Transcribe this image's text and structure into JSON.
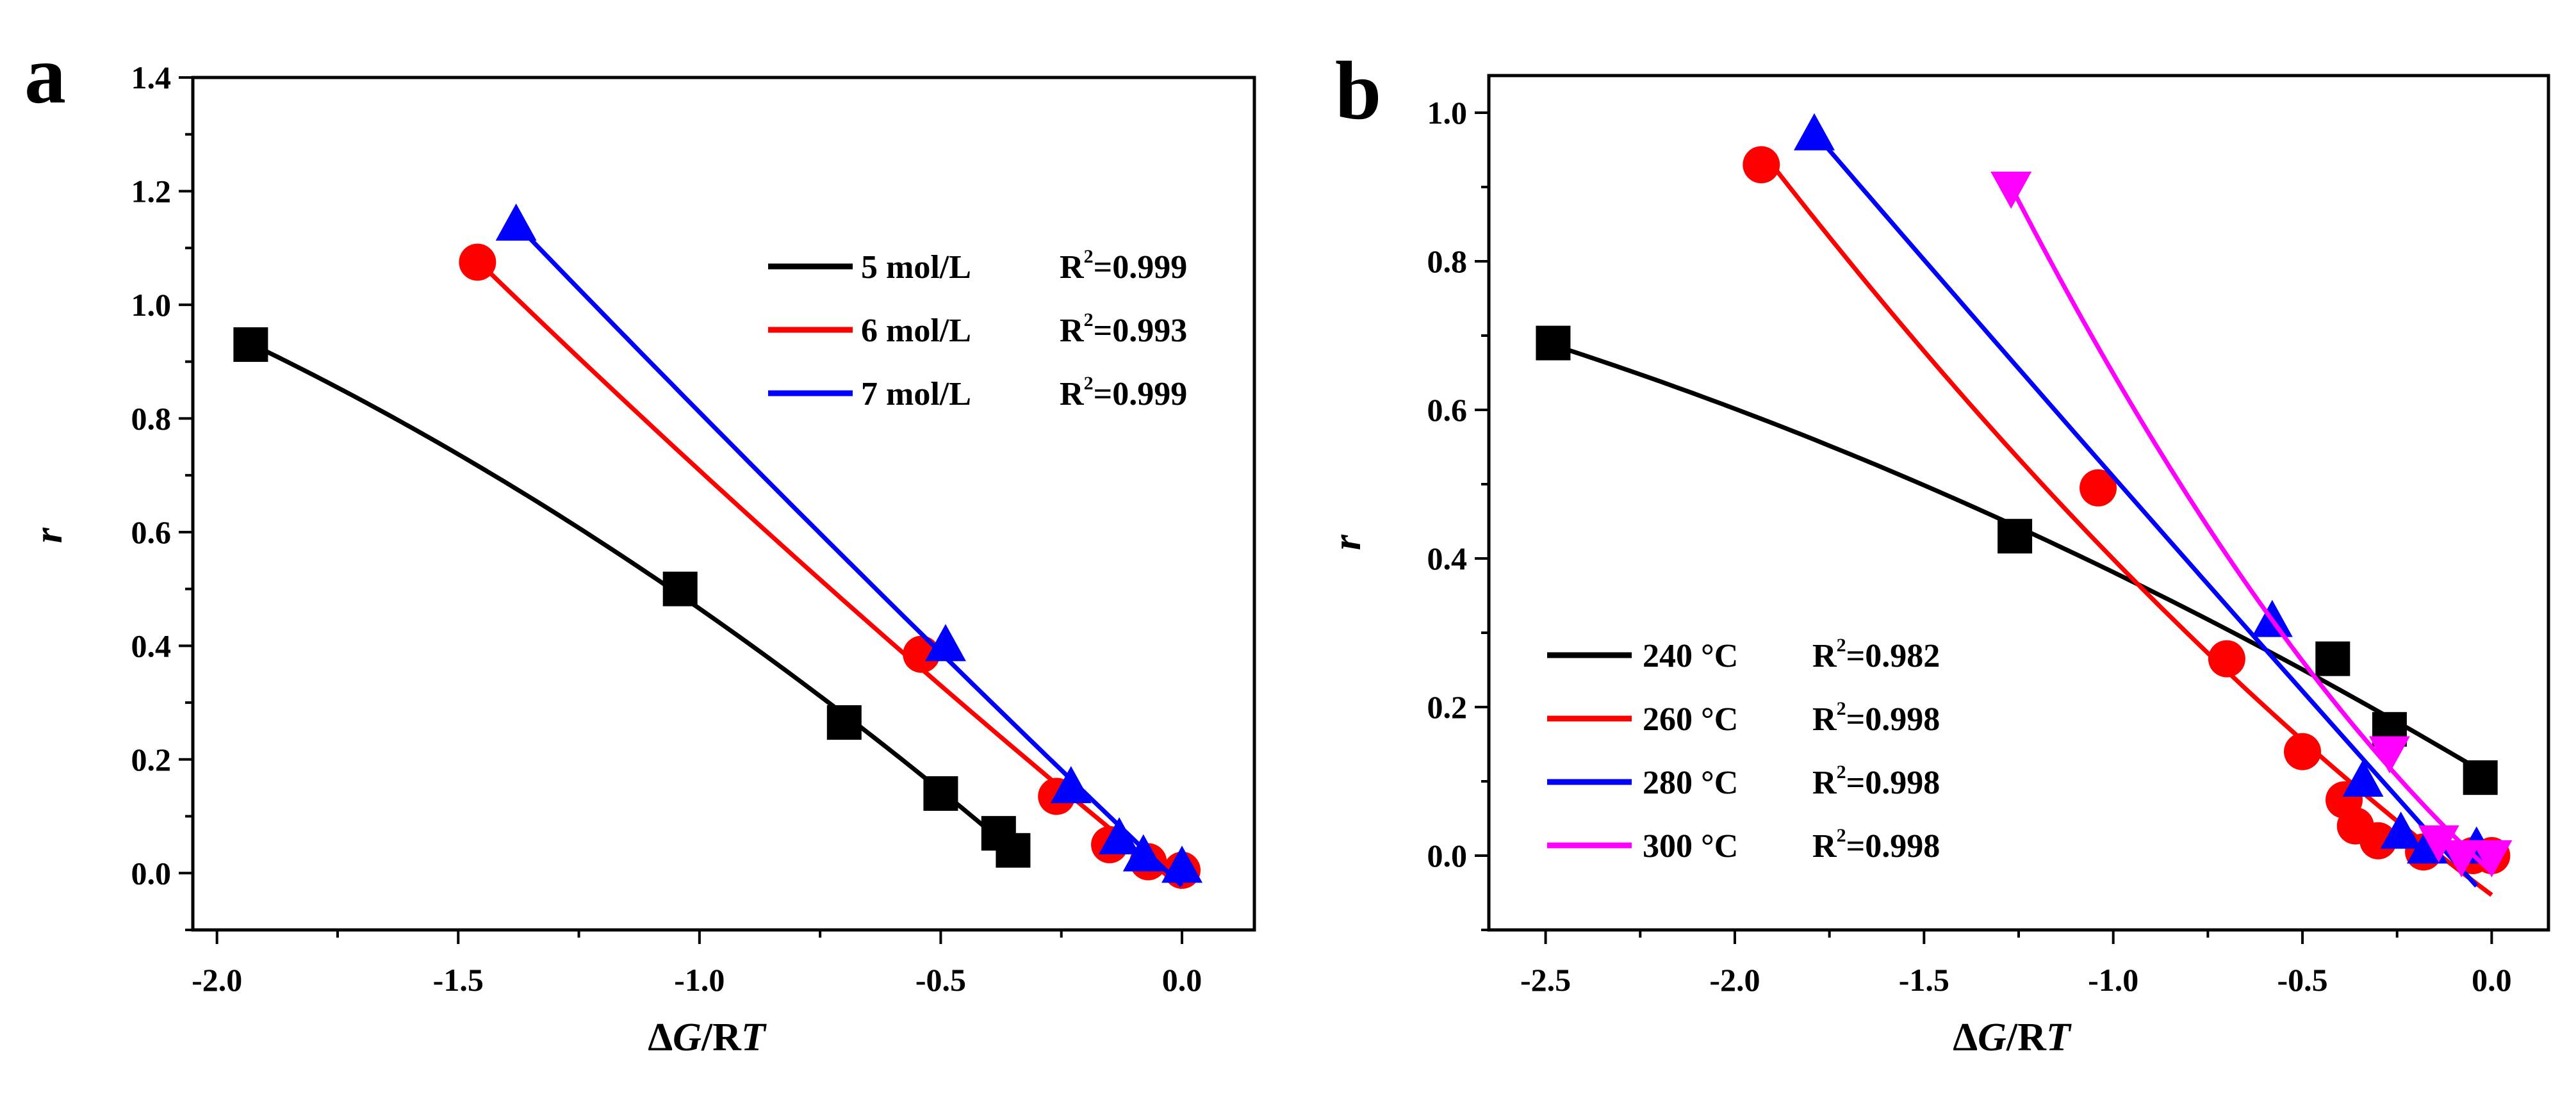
{
  "chart_data": [
    {
      "type": "scatter",
      "panel_label": "a",
      "xlabel_parts": [
        "Δ",
        "G",
        "/R",
        "T"
      ],
      "ylabel": "r",
      "xlim": [
        -2.05,
        0.15
      ],
      "ylim": [
        -0.1,
        1.4
      ],
      "xticks": [
        -2.0,
        -1.5,
        -1.0,
        -0.5,
        0.0
      ],
      "xtick_labels": [
        "-2.0",
        "-1.5",
        "-1.0",
        "-0.5",
        "0.0"
      ],
      "yticks": [
        0.0,
        0.2,
        0.4,
        0.6,
        0.8,
        1.0,
        1.2,
        1.4
      ],
      "ytick_labels": [
        "0.0",
        "0.2",
        "0.4",
        "0.6",
        "0.8",
        "1.0",
        "1.2",
        "1.4"
      ],
      "legend_placement": "top-right",
      "series": [
        {
          "name": "5 mol/L",
          "r2": "R²=0.999",
          "r2_base": "R",
          "r2_sup": "2",
          "r2_val": "=0.999",
          "color": "#000000",
          "marker": "square",
          "x": [
            -1.93,
            -1.04,
            -0.7,
            -0.5,
            -0.38,
            -0.35
          ],
          "y": [
            0.93,
            0.5,
            0.265,
            0.14,
            0.07,
            0.04
          ]
        },
        {
          "name": "6 mol/L",
          "r2": "R²=0.993",
          "r2_base": "R",
          "r2_sup": "2",
          "r2_val": "=0.993",
          "color": "#ff0000",
          "marker": "circle",
          "x": [
            -1.46,
            -0.54,
            -0.26,
            -0.15,
            -0.07,
            0.0
          ],
          "y": [
            1.075,
            0.385,
            0.135,
            0.05,
            0.02,
            0.005
          ]
        },
        {
          "name": "7 mol/L",
          "r2": "R²=0.999",
          "r2_base": "R",
          "r2_sup": "2",
          "r2_val": "=0.999",
          "color": "#0000ff",
          "marker": "triangle-up",
          "x": [
            -1.38,
            -0.49,
            -0.23,
            -0.13,
            -0.08,
            0.0
          ],
          "y": [
            1.14,
            0.4,
            0.15,
            0.06,
            0.03,
            0.01
          ]
        }
      ]
    },
    {
      "type": "scatter",
      "panel_label": "b",
      "xlabel_parts": [
        "Δ",
        "G",
        "/R",
        "T"
      ],
      "ylabel": "r",
      "xlim": [
        -2.65,
        0.15
      ],
      "ylim": [
        -0.1,
        1.05
      ],
      "xticks": [
        -2.5,
        -2.0,
        -1.5,
        -1.0,
        -0.5,
        0.0
      ],
      "xtick_labels": [
        "-2.5",
        "-2.0",
        "-1.5",
        "-1.0",
        "-0.5",
        "0.0"
      ],
      "yticks": [
        0.0,
        0.2,
        0.4,
        0.6,
        0.8,
        1.0
      ],
      "ytick_labels": [
        "0.0",
        "0.2",
        "0.4",
        "0.6",
        "0.8",
        "1.0"
      ],
      "legend_placement": "bottom-left",
      "series": [
        {
          "name": "240 °C",
          "r2": "R²=0.982",
          "r2_base": "R",
          "r2_sup": "2",
          "r2_val": "=0.982",
          "color": "#000000",
          "marker": "square",
          "x": [
            -2.48,
            -1.26,
            -0.42,
            -0.27,
            -0.03
          ],
          "y": [
            0.69,
            0.43,
            0.265,
            0.17,
            0.105
          ]
        },
        {
          "name": "260 °C",
          "r2": "R²=0.998",
          "r2_base": "R",
          "r2_sup": "2",
          "r2_val": "=0.998",
          "color": "#ff0000",
          "marker": "circle",
          "x": [
            -1.93,
            -1.04,
            -0.7,
            -0.5,
            -0.39,
            -0.36,
            -0.3,
            -0.18,
            -0.05,
            0.0
          ],
          "y": [
            0.93,
            0.495,
            0.265,
            0.14,
            0.075,
            0.04,
            0.02,
            0.005,
            0.0,
            0.0
          ]
        },
        {
          "name": "280 °C",
          "r2": "R²=0.998",
          "r2_base": "R",
          "r2_sup": "2",
          "r2_val": "=0.998",
          "color": "#0000ff",
          "marker": "triangle-up",
          "x": [
            -1.79,
            -0.58,
            -0.34,
            -0.24,
            -0.17,
            -0.04
          ],
          "y": [
            0.97,
            0.315,
            0.1,
            0.03,
            0.01,
            0.01
          ]
        },
        {
          "name": "300 °C",
          "r2": "R²=0.998",
          "r2_base": "R",
          "r2_sup": "2",
          "r2_val": "=0.998",
          "color": "#ff00ff",
          "marker": "triangle-down",
          "x": [
            -1.27,
            -0.27,
            -0.14,
            -0.08,
            0.0
          ],
          "y": [
            0.9,
            0.14,
            0.02,
            0.0,
            0.0
          ]
        }
      ]
    }
  ]
}
